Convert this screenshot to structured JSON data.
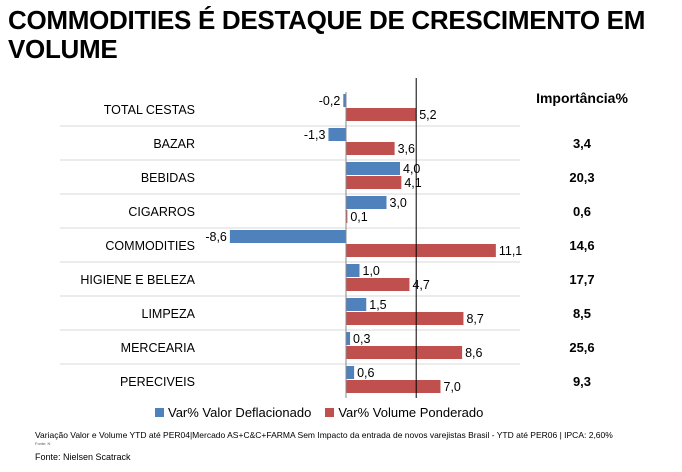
{
  "title": "COMMODITIES É DESTAQUE DE CRESCIMENTO EM VOLUME",
  "chart_data": {
    "type": "bar",
    "orientation": "horizontal",
    "categories": [
      "TOTAL CESTAS",
      "BAZAR",
      "BEBIDAS",
      "CIGARROS",
      "COMMODITIES",
      "HIGIENE E BELEZA",
      "LIMPEZA",
      "MERCEARIA",
      "PERECIVEIS"
    ],
    "series": [
      {
        "name": "Var% Valor Deflacionado",
        "color": "#4F81BD",
        "values": [
          -0.2,
          -1.3,
          4.0,
          3.0,
          -8.6,
          1.0,
          1.5,
          0.3,
          0.6
        ],
        "labels": [
          "-0,2",
          "-1,3",
          "4,0",
          "3,0",
          "-8,6",
          "1,0",
          "1,5",
          "0,3",
          "0,6"
        ]
      },
      {
        "name": "Var% Volume Ponderado",
        "color": "#C0504D",
        "values": [
          5.2,
          3.6,
          4.1,
          0.1,
          11.1,
          4.7,
          8.7,
          8.6,
          7.0
        ],
        "labels": [
          "5,2",
          "3,6",
          "4,1",
          "0,1",
          "11,1",
          "4,7",
          "8,7",
          "8,6",
          "7,0"
        ]
      }
    ],
    "reference_line_value": 5.2,
    "legend_position": "bottom",
    "importance_header": "Importância%",
    "importance": [
      "",
      "3,4",
      "20,3",
      "0,6",
      "14,6",
      "17,7",
      "8,5",
      "25,6",
      "9,3"
    ]
  },
  "footnote": "Variação Valor e Volume YTD até PER04|Mercado AS+C&C+FARMA Sem Impacto da entrada de novos varejistas Brasil - YTD até PER06 | IPCA: 2,60%",
  "footnote_small": "Fonte: N",
  "source": "Fonte: Nielsen Scatrack"
}
